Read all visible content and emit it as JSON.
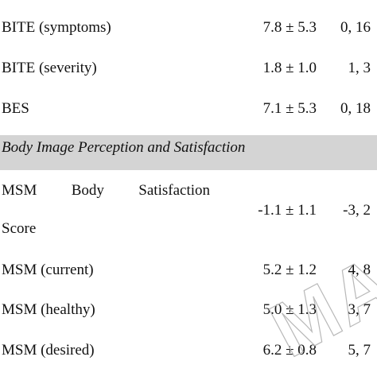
{
  "rows_top": [
    {
      "label": "BITE (symptoms)",
      "mean": "7.8 ± 5.3",
      "range": "0, 16"
    },
    {
      "label": "BITE (severity)",
      "mean": "1.8 ± 1.0",
      "range": "1, 3"
    },
    {
      "label": "BES",
      "mean": "7.1 ± 5.3",
      "range": "0, 18"
    }
  ],
  "section": {
    "title": "Body Image Perception and Satisfaction"
  },
  "msm_score": {
    "label_words": [
      "MSM",
      "Body",
      "Satisfaction"
    ],
    "label_line2": "Score",
    "mean": "-1.1 ± 1.1",
    "range": "-3, 2"
  },
  "rows_bottom": [
    {
      "label": "MSM (current)",
      "mean": "5.2 ± 1.2",
      "range": "4, 8"
    },
    {
      "label": "MSM (healthy)",
      "mean": "5.0 ± 1.3",
      "range": "3, 7"
    },
    {
      "label": "MSM (desired)",
      "mean": "6.2 ± 0.8",
      "range": "5, 7"
    }
  ],
  "watermark": {
    "text": "MA"
  }
}
